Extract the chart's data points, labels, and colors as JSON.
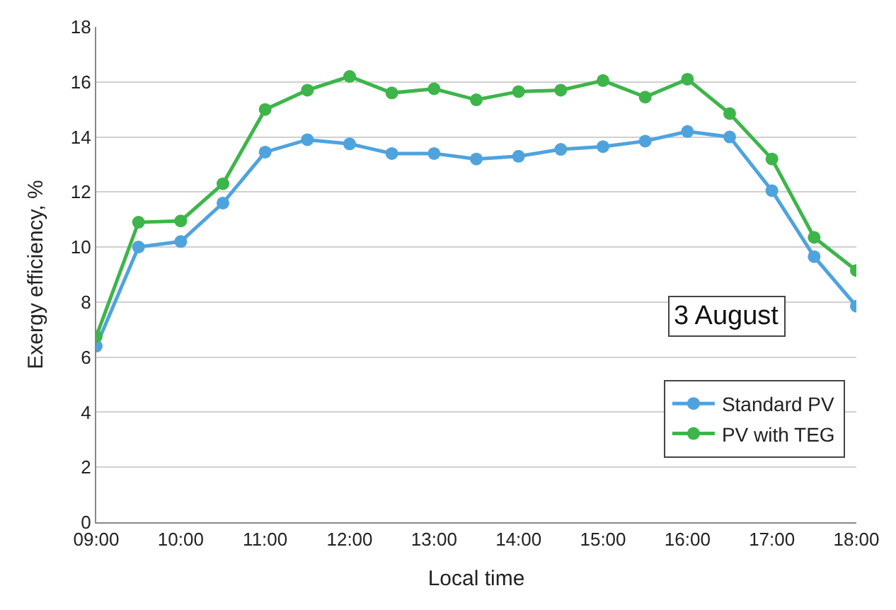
{
  "chart_data": {
    "type": "line",
    "xlabel": "Local time",
    "ylabel": "Exergy efficiency, %",
    "x": [
      9,
      9.5,
      10,
      10.5,
      11,
      11.5,
      12,
      12.5,
      13,
      13.5,
      14,
      14.5,
      15,
      15.5,
      16,
      16.5,
      17,
      17.5,
      18
    ],
    "series": [
      {
        "name": "Standard PV",
        "color": "#4fa3dd",
        "values": [
          6.4,
          10.0,
          10.2,
          11.6,
          13.45,
          13.9,
          13.75,
          13.4,
          13.4,
          13.2,
          13.3,
          13.55,
          13.65,
          13.85,
          14.2,
          14.0,
          12.05,
          9.65,
          7.85
        ]
      },
      {
        "name": "PV with TEG",
        "color": "#3db54a",
        "values": [
          6.75,
          10.9,
          10.95,
          12.3,
          15.0,
          15.7,
          16.2,
          15.6,
          15.75,
          15.35,
          15.65,
          15.7,
          16.05,
          15.45,
          16.1,
          14.85,
          13.2,
          10.35,
          9.15
        ]
      }
    ],
    "xlim": [
      9,
      18
    ],
    "xticks": [
      {
        "value": 9,
        "label": "09:00"
      },
      {
        "value": 10,
        "label": "10:00"
      },
      {
        "value": 11,
        "label": "11:00"
      },
      {
        "value": 12,
        "label": "12:00"
      },
      {
        "value": 13,
        "label": "13:00"
      },
      {
        "value": 14,
        "label": "14:00"
      },
      {
        "value": 15,
        "label": "15:00"
      },
      {
        "value": 16,
        "label": "16:00"
      },
      {
        "value": 17,
        "label": "17:00"
      },
      {
        "value": 18,
        "label": "18:00"
      }
    ],
    "ylim": [
      0,
      18
    ],
    "yticks": [
      0,
      2,
      4,
      6,
      8,
      10,
      12,
      14,
      16,
      18
    ],
    "grid": "y",
    "legend": "bottom right",
    "marker": "circle",
    "line_style": "solid",
    "annotations": [
      "3 August"
    ]
  }
}
